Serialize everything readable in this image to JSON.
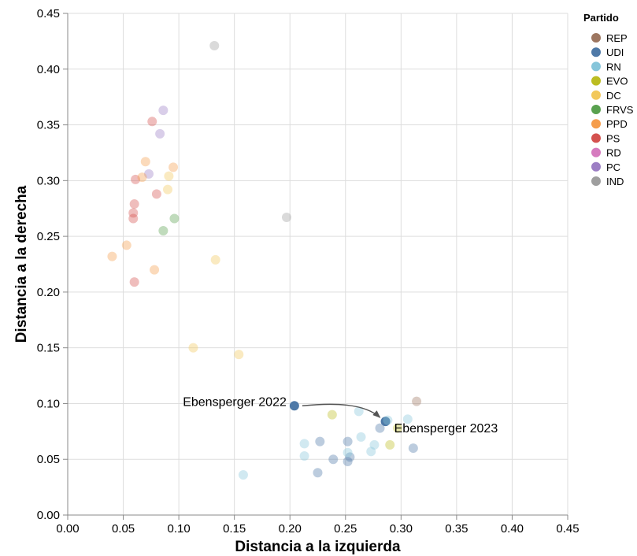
{
  "chart_data": {
    "type": "scatter",
    "xlabel": "Distancia a la izquierda",
    "ylabel": "Distancia a la derecha",
    "xlim": [
      0,
      0.45
    ],
    "ylim": [
      0,
      0.45
    ],
    "x_ticks": [
      "0.00",
      "0.05",
      "0.10",
      "0.15",
      "0.20",
      "0.25",
      "0.30",
      "0.35",
      "0.40",
      "0.45"
    ],
    "y_ticks": [
      "0.00",
      "0.05",
      "0.10",
      "0.15",
      "0.20",
      "0.25",
      "0.30",
      "0.35",
      "0.40",
      "0.45"
    ],
    "grid": true,
    "legend": {
      "title": "Partido",
      "placement": "top-right",
      "items": [
        {
          "name": "REP",
          "color": "#9d7660"
        },
        {
          "name": "UDI",
          "color": "#4e79a7"
        },
        {
          "name": "RN",
          "color": "#86c5da"
        },
        {
          "name": "EVO",
          "color": "#bcbd22"
        },
        {
          "name": "DC",
          "color": "#f2c85b"
        },
        {
          "name": "FRVS",
          "color": "#59a14f"
        },
        {
          "name": "PPD",
          "color": "#f59d4c"
        },
        {
          "name": "PS",
          "color": "#d4524f"
        },
        {
          "name": "RD",
          "color": "#d67bbf"
        },
        {
          "name": "PC",
          "color": "#9c7ec4"
        },
        {
          "name": "IND",
          "color": "#9e9e9e"
        }
      ]
    },
    "points": [
      {
        "party": "IND",
        "x": 0.132,
        "y": 0.421
      },
      {
        "party": "IND",
        "x": 0.197,
        "y": 0.267
      },
      {
        "party": "PC",
        "x": 0.086,
        "y": 0.363
      },
      {
        "party": "PC",
        "x": 0.083,
        "y": 0.342
      },
      {
        "party": "PC",
        "x": 0.073,
        "y": 0.306
      },
      {
        "party": "PS",
        "x": 0.076,
        "y": 0.353
      },
      {
        "party": "PS",
        "x": 0.061,
        "y": 0.301
      },
      {
        "party": "PS",
        "x": 0.08,
        "y": 0.288
      },
      {
        "party": "PS",
        "x": 0.06,
        "y": 0.279
      },
      {
        "party": "PS",
        "x": 0.059,
        "y": 0.271
      },
      {
        "party": "PS",
        "x": 0.059,
        "y": 0.266
      },
      {
        "party": "PS",
        "x": 0.06,
        "y": 0.209
      },
      {
        "party": "PPD",
        "x": 0.07,
        "y": 0.317
      },
      {
        "party": "PPD",
        "x": 0.067,
        "y": 0.303
      },
      {
        "party": "PPD",
        "x": 0.095,
        "y": 0.312
      },
      {
        "party": "PPD",
        "x": 0.053,
        "y": 0.242
      },
      {
        "party": "PPD",
        "x": 0.04,
        "y": 0.232
      },
      {
        "party": "PPD",
        "x": 0.078,
        "y": 0.22
      },
      {
        "party": "DC",
        "x": 0.091,
        "y": 0.304
      },
      {
        "party": "DC",
        "x": 0.09,
        "y": 0.292
      },
      {
        "party": "DC",
        "x": 0.133,
        "y": 0.229
      },
      {
        "party": "DC",
        "x": 0.113,
        "y": 0.15
      },
      {
        "party": "DC",
        "x": 0.154,
        "y": 0.144
      },
      {
        "party": "FRVS",
        "x": 0.096,
        "y": 0.266
      },
      {
        "party": "FRVS",
        "x": 0.086,
        "y": 0.255
      },
      {
        "party": "UDI",
        "x": 0.204,
        "y": 0.098,
        "highlight": true
      },
      {
        "party": "UDI",
        "x": 0.286,
        "y": 0.084,
        "highlight": true
      },
      {
        "party": "UDI",
        "x": 0.281,
        "y": 0.078
      },
      {
        "party": "UDI",
        "x": 0.227,
        "y": 0.066
      },
      {
        "party": "UDI",
        "x": 0.252,
        "y": 0.066
      },
      {
        "party": "UDI",
        "x": 0.239,
        "y": 0.05
      },
      {
        "party": "UDI",
        "x": 0.254,
        "y": 0.052
      },
      {
        "party": "UDI",
        "x": 0.252,
        "y": 0.048
      },
      {
        "party": "UDI",
        "x": 0.225,
        "y": 0.038
      },
      {
        "party": "UDI",
        "x": 0.311,
        "y": 0.06
      },
      {
        "party": "RN",
        "x": 0.262,
        "y": 0.093
      },
      {
        "party": "RN",
        "x": 0.288,
        "y": 0.085
      },
      {
        "party": "RN",
        "x": 0.306,
        "y": 0.086
      },
      {
        "party": "RN",
        "x": 0.264,
        "y": 0.07
      },
      {
        "party": "RN",
        "x": 0.276,
        "y": 0.063
      },
      {
        "party": "RN",
        "x": 0.273,
        "y": 0.057
      },
      {
        "party": "RN",
        "x": 0.213,
        "y": 0.064
      },
      {
        "party": "RN",
        "x": 0.213,
        "y": 0.053
      },
      {
        "party": "RN",
        "x": 0.252,
        "y": 0.056
      },
      {
        "party": "RN",
        "x": 0.158,
        "y": 0.036
      },
      {
        "party": "EVO",
        "x": 0.238,
        "y": 0.09
      },
      {
        "party": "EVO",
        "x": 0.297,
        "y": 0.078
      },
      {
        "party": "EVO",
        "x": 0.29,
        "y": 0.063
      },
      {
        "party": "REP",
        "x": 0.314,
        "y": 0.102
      }
    ],
    "annotations": [
      {
        "text": "Ebensperger 2022",
        "x": 0.204,
        "y": 0.098,
        "anchor": "left"
      },
      {
        "text": "Ebensperger 2023",
        "x": 0.286,
        "y": 0.084,
        "anchor": "right"
      }
    ]
  }
}
